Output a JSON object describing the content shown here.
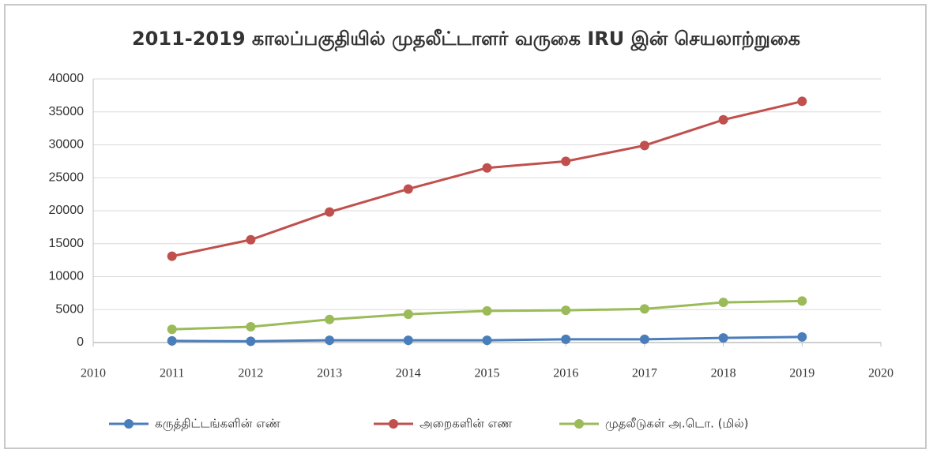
{
  "chart_data": {
    "type": "line",
    "title": "2011-2019 காலப்பகுதியில் முதலீட்டாளர் வருகை IRU இன் செயலாற்றுகை",
    "x": [
      2011,
      2012,
      2013,
      2014,
      2015,
      2016,
      2017,
      2018,
      2019
    ],
    "series": [
      {
        "name": "கருத்திட்டங்களின் எண்",
        "color": "#4a7ebb",
        "values": [
          250,
          200,
          350,
          350,
          350,
          500,
          500,
          700,
          850
        ]
      },
      {
        "name": "அறைகளின் எண",
        "color": "#c0504d",
        "values": [
          13100,
          15600,
          19800,
          23300,
          26500,
          27500,
          29900,
          33800,
          36600
        ]
      },
      {
        "name": "முதலீடுகள் அ.டொ. (மில்)",
        "color": "#9bbb59",
        "values": [
          2000,
          2400,
          3500,
          4300,
          4800,
          4900,
          5100,
          6100,
          6300
        ]
      }
    ],
    "xlim": [
      2010,
      2020
    ],
    "xticks": [
      2010,
      2011,
      2012,
      2013,
      2014,
      2015,
      2016,
      2017,
      2018,
      2019,
      2020
    ],
    "ylim": [
      0,
      40000
    ],
    "yticks": [
      0,
      5000,
      10000,
      15000,
      20000,
      25000,
      30000,
      35000,
      40000
    ],
    "grid": true,
    "legend": "bottom"
  }
}
